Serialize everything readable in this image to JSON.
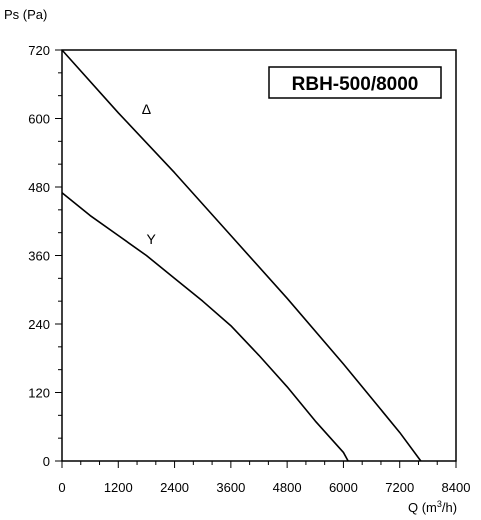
{
  "chart_data": {
    "type": "line",
    "title": "RBH-500/8000",
    "ylabel": "Ps (Pa)",
    "xlabel": {
      "main": "Q (m",
      "sup": "3",
      "tail": "/h)"
    },
    "xlim": [
      0,
      8400
    ],
    "ylim": [
      0,
      720
    ],
    "xticks": [
      0,
      1200,
      2400,
      3600,
      4800,
      6000,
      7200,
      8400
    ],
    "yticks": [
      0,
      120,
      240,
      360,
      480,
      600,
      720
    ],
    "x_minor_step": 400,
    "y_minor_step": 40,
    "grid": false,
    "series": [
      {
        "name": "Δ",
        "label_at": [
          1800,
          608
        ],
        "x": [
          0,
          1200,
          2400,
          3600,
          4800,
          6000,
          7200,
          7650
        ],
        "y": [
          720,
          610,
          505,
          395,
          285,
          170,
          50,
          0
        ]
      },
      {
        "name": "Y",
        "label_at": [
          1900,
          380
        ],
        "x": [
          0,
          600,
          1200,
          1800,
          2400,
          3000,
          3600,
          4200,
          4800,
          5400,
          6000,
          6100
        ],
        "y": [
          470,
          430,
          395,
          360,
          320,
          280,
          237,
          185,
          130,
          70,
          15,
          0
        ]
      }
    ]
  }
}
